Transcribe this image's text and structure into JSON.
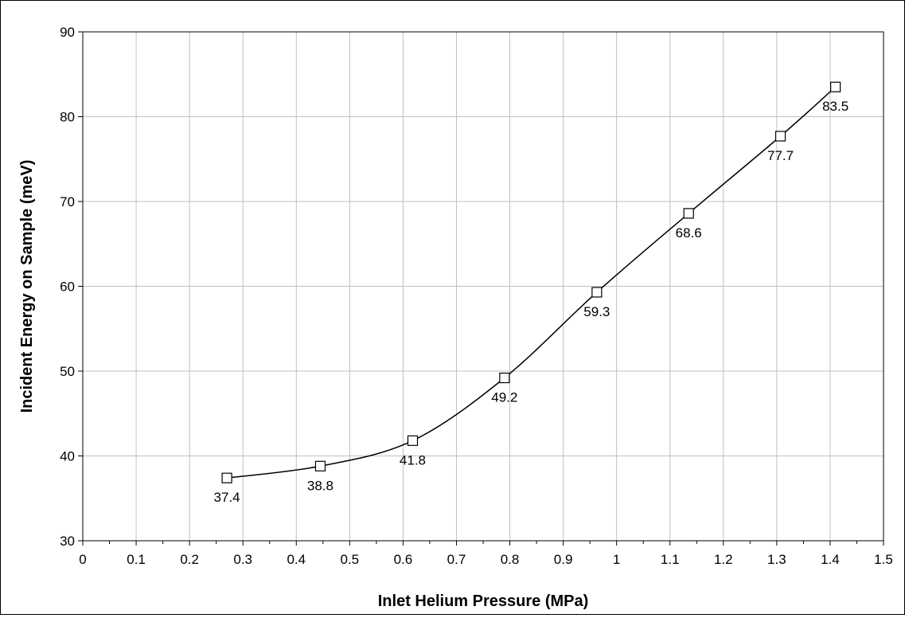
{
  "chart_data": {
    "type": "line",
    "title": "",
    "xlabel": "Inlet Helium Pressure (MPa)",
    "ylabel": "Incident Energy on Sample (meV)",
    "xlim": [
      0,
      1.5
    ],
    "ylim": [
      30,
      90
    ],
    "xticks": [
      "0",
      "0.1",
      "0.2",
      "0.3",
      "0.4",
      "0.5",
      "0.6",
      "0.7",
      "0.8",
      "0.9",
      "1",
      "1.1",
      "1.2",
      "1.3",
      "1.4",
      "1.5"
    ],
    "yticks": [
      "30",
      "40",
      "50",
      "60",
      "70",
      "80",
      "90"
    ],
    "grid": true,
    "legend": "none",
    "marker": "open-square",
    "line_color": "#000000",
    "series": [
      {
        "x": [
          0.27,
          0.445,
          0.618,
          0.79,
          0.963,
          1.135,
          1.307,
          1.41
        ],
        "y": [
          37.4,
          38.8,
          41.8,
          49.2,
          59.3,
          68.6,
          77.7,
          83.5
        ],
        "labels": [
          "37.4",
          "38.8",
          "41.8",
          "49.2",
          "59.3",
          "68.6",
          "77.7",
          "83.5"
        ]
      }
    ]
  }
}
